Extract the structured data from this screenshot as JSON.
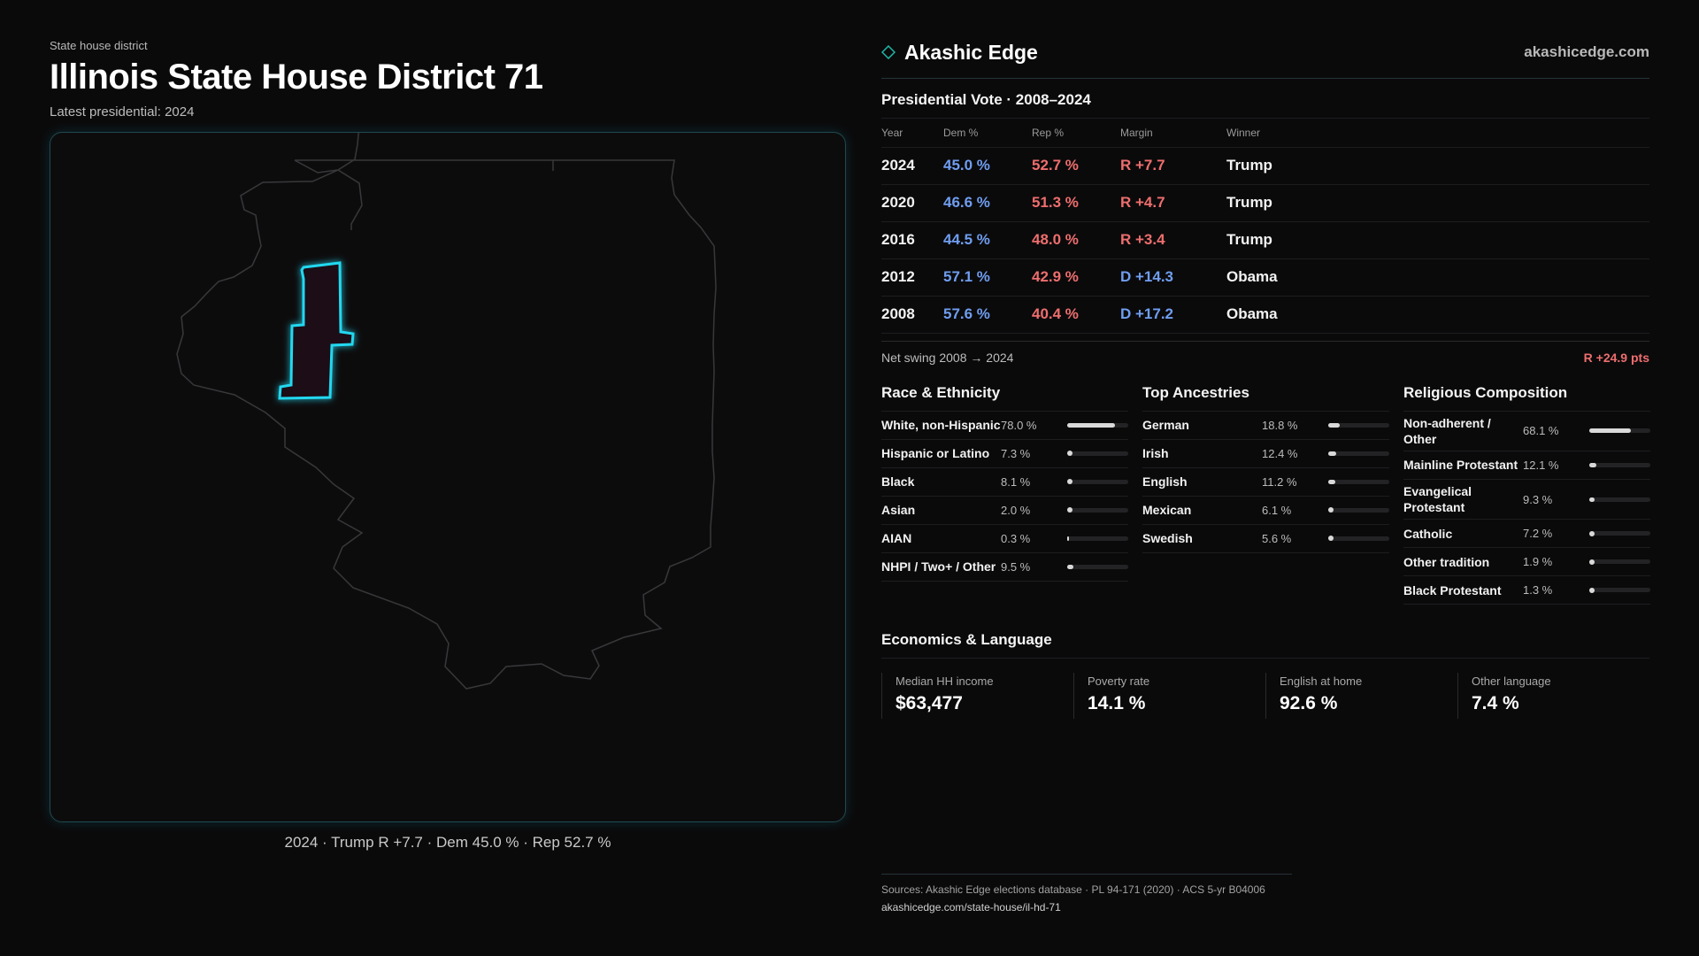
{
  "header": {
    "kicker": "State house district",
    "title": "Illinois State House District 71",
    "subtitle": "Latest presidential: 2024"
  },
  "map": {
    "state_outline_color": "#3a3a3c",
    "district_color": "#20d6ee",
    "caption": "2024 · Trump R +7.7 · Dem 45.0 % · Rep 52.7 %"
  },
  "brand": {
    "name": "Akashic Edge",
    "url": "akashicedge.com",
    "icon": "diamond-outline-icon",
    "accent": "#1fb8a8"
  },
  "vote": {
    "title": "Presidential Vote · 2008–2024",
    "columns": [
      "Year",
      "Dem %",
      "Rep %",
      "Margin",
      "Winner"
    ],
    "rows": [
      {
        "year": "2024",
        "dem": "45.0 %",
        "rep": "52.7 %",
        "margin": "R +7.7",
        "margin_party": "rep",
        "winner": "Trump"
      },
      {
        "year": "2020",
        "dem": "46.6 %",
        "rep": "51.3 %",
        "margin": "R +4.7",
        "margin_party": "rep",
        "winner": "Trump"
      },
      {
        "year": "2016",
        "dem": "44.5 %",
        "rep": "48.0 %",
        "margin": "R +3.4",
        "margin_party": "rep",
        "winner": "Trump"
      },
      {
        "year": "2012",
        "dem": "57.1 %",
        "rep": "42.9 %",
        "margin": "D +14.3",
        "margin_party": "dem",
        "winner": "Obama"
      },
      {
        "year": "2008",
        "dem": "57.6 %",
        "rep": "40.4 %",
        "margin": "D +17.2",
        "margin_party": "dem",
        "winner": "Obama"
      }
    ],
    "swing_label": "Net swing 2008 → 2024",
    "swing_value": "R +24.9 pts",
    "dem_color": "#6f9ef0",
    "rep_color": "#ee6e6e"
  },
  "race": {
    "title": "Race & Ethnicity",
    "items": [
      {
        "label": "White, non-Hispanic",
        "value": "78.0 %",
        "pct": 78.0
      },
      {
        "label": "Hispanic or Latino",
        "value": "7.3 %",
        "pct": 7.3
      },
      {
        "label": "Black",
        "value": "8.1 %",
        "pct": 8.1
      },
      {
        "label": "Asian",
        "value": "2.0 %",
        "pct": 2.0
      },
      {
        "label": "AIAN",
        "value": "0.3 %",
        "pct": 0.3
      },
      {
        "label": "NHPI / Two+ / Other",
        "value": "9.5 %",
        "pct": 9.5
      }
    ]
  },
  "ancestry": {
    "title": "Top Ancestries",
    "items": [
      {
        "label": "German",
        "value": "18.8 %",
        "pct": 18.8
      },
      {
        "label": "Irish",
        "value": "12.4 %",
        "pct": 12.4
      },
      {
        "label": "English",
        "value": "11.2 %",
        "pct": 11.2
      },
      {
        "label": "Mexican",
        "value": "6.1 %",
        "pct": 6.1
      },
      {
        "label": "Swedish",
        "value": "5.6 %",
        "pct": 5.6
      }
    ]
  },
  "religion": {
    "title": "Religious Composition",
    "items": [
      {
        "label": "Non-adherent / Other",
        "value": "68.1 %",
        "pct": 68.1
      },
      {
        "label": "Mainline Protestant",
        "value": "12.1 %",
        "pct": 12.1
      },
      {
        "label": "Evangelical Protestant",
        "value": "9.3 %",
        "pct": 9.3
      },
      {
        "label": "Catholic",
        "value": "7.2 %",
        "pct": 7.2
      },
      {
        "label": "Other tradition",
        "value": "1.9 %",
        "pct": 1.9
      },
      {
        "label": "Black Protestant",
        "value": "1.3 %",
        "pct": 1.3
      }
    ]
  },
  "economics": {
    "title": "Economics & Language",
    "stats": [
      {
        "label": "Median HH income",
        "value": "$63,477"
      },
      {
        "label": "Poverty rate",
        "value": "14.1 %"
      },
      {
        "label": "English at home",
        "value": "92.6 %"
      },
      {
        "label": "Other language",
        "value": "7.4 %"
      }
    ]
  },
  "sources": {
    "line": "Sources: Akashic Edge elections database · PL 94-171 (2020) · ACS 5-yr B04006",
    "url": "akashicedge.com/state-house/il-hd-71"
  }
}
